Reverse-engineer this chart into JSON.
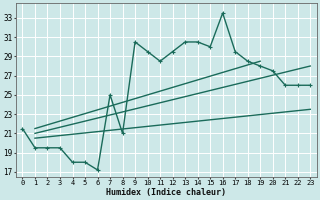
{
  "xlabel": "Humidex (Indice chaleur)",
  "bg_color": "#cde8e8",
  "line_color": "#1a6b5a",
  "grid_color": "#b8d8d8",
  "xlim": [
    -0.5,
    23.5
  ],
  "ylim": [
    16.5,
    34.5
  ],
  "xticks": [
    0,
    1,
    2,
    3,
    4,
    5,
    6,
    7,
    8,
    9,
    10,
    11,
    12,
    13,
    14,
    15,
    16,
    17,
    18,
    19,
    20,
    21,
    22,
    23
  ],
  "yticks": [
    17,
    19,
    21,
    23,
    25,
    27,
    29,
    31,
    33
  ],
  "line1_x": [
    0,
    1,
    2,
    3,
    4,
    5,
    6,
    7,
    8,
    9,
    10,
    11,
    12,
    13,
    14,
    15,
    16,
    17,
    18,
    19,
    20,
    21,
    22,
    23
  ],
  "line1_y": [
    21.5,
    19.5,
    19.5,
    19.5,
    18.0,
    18.0,
    17.2,
    25.0,
    21.0,
    30.5,
    29.5,
    28.5,
    29.5,
    30.5,
    30.5,
    30.0,
    33.5,
    29.5,
    28.5,
    28.0,
    27.5,
    26.0,
    26.0,
    26.0
  ],
  "line2_x": [
    1,
    23
  ],
  "line2_y": [
    21.0,
    28.0
  ],
  "line3_x": [
    1,
    23
  ],
  "line3_y": [
    20.5,
    23.5
  ],
  "line4_x": [
    1,
    19
  ],
  "line4_y": [
    21.5,
    28.5
  ],
  "marker_size": 2.5,
  "line_width": 1.0
}
